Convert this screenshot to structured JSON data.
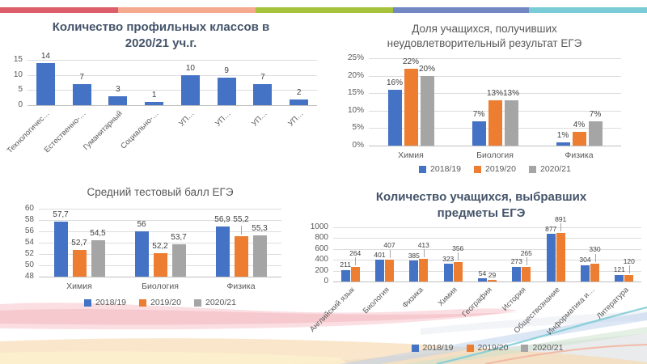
{
  "slide": {
    "background": "#FFFFFF",
    "stripe_colors": [
      "#DB5E6A",
      "#F4AA8E",
      "#A6C23C",
      "#7188C3",
      "#79CCD5"
    ],
    "palette": {
      "year_2018_19": "#4472C4",
      "year_2019_20": "#ED7D31",
      "year_2020_21": "#A5A5A5"
    },
    "title_color_bold": "#44546A",
    "title_color_regular": "#595959"
  },
  "chart_data": [
    {
      "type": "bar",
      "position": "top-left",
      "title": "Количество профильных классов в\n2020/21 уч.г.",
      "title_style": "bold",
      "categories": [
        "Технологичес…",
        "Естественно-…",
        "Гуманитарный",
        "Социально-…",
        "УП…",
        "УП…",
        "УП…",
        "УП…"
      ],
      "values": [
        14,
        7,
        3,
        1,
        10,
        9,
        7,
        2
      ],
      "bar_color": "#4472C4",
      "ylim": [
        0,
        15
      ],
      "yticks": [
        0,
        5,
        10,
        15
      ],
      "grid": true,
      "rotated_category_labels": true,
      "legend_position": "none"
    },
    {
      "type": "bar",
      "position": "top-right",
      "title": "Доля учащихся, получивших\nнеудовлетворительный результат ЕГЭ",
      "title_style": "regular",
      "categories": [
        "Химия",
        "Биология",
        "Физика"
      ],
      "series": [
        {
          "name": "2018/19",
          "color": "#4472C4",
          "values": [
            16,
            7,
            1
          ]
        },
        {
          "name": "2019/20",
          "color": "#ED7D31",
          "values": [
            22,
            13,
            4
          ]
        },
        {
          "name": "2020/21",
          "color": "#A5A5A5",
          "values": [
            20,
            13,
            7
          ]
        }
      ],
      "value_suffix": "%",
      "ylim": [
        0,
        25
      ],
      "yticks": [
        0,
        5,
        10,
        15,
        20,
        25
      ],
      "ytick_suffix": "%",
      "grid": true,
      "legend_position": "bottom"
    },
    {
      "type": "bar",
      "position": "bottom-left",
      "title": "Средний тестовый балл ЕГЭ",
      "title_style": "regular",
      "categories": [
        "Химия",
        "Биология",
        "Физика"
      ],
      "series": [
        {
          "name": "2018/19",
          "color": "#4472C4",
          "values": [
            57.7,
            56,
            56.9
          ],
          "labels": [
            "57,7",
            "56",
            "56,9"
          ]
        },
        {
          "name": "2019/20",
          "color": "#ED7D31",
          "values": [
            52.7,
            52.2,
            55.2
          ],
          "labels": [
            "52,7",
            "52,2",
            "55,2"
          ],
          "raised": [
            false,
            false,
            true
          ]
        },
        {
          "name": "2020/21",
          "color": "#A5A5A5",
          "values": [
            54.5,
            53.7,
            55.3
          ],
          "labels": [
            "54,5",
            "53,7",
            "55,3"
          ]
        }
      ],
      "ylim": [
        48,
        60
      ],
      "yticks": [
        48,
        50,
        52,
        54,
        56,
        58,
        60
      ],
      "grid": true,
      "legend_position": "bottom"
    },
    {
      "type": "bar",
      "position": "bottom-right",
      "title": "Количество учащихся, выбравших\nпредметы ЕГЭ",
      "title_style": "bold",
      "categories": [
        "Английский язык",
        "Биология",
        "Физика",
        "Химия",
        "География",
        "История",
        "Обществознание",
        "Информатика и…",
        "Литература"
      ],
      "series": [
        {
          "name": "2018/19",
          "color": "#4472C4",
          "values": [
            211,
            401,
            385,
            323,
            54,
            273,
            877,
            304,
            121
          ]
        },
        {
          "name": "2019/20",
          "color": "#ED7D31",
          "values": [
            264,
            407,
            413,
            356,
            29,
            265,
            891,
            330,
            120
          ],
          "raised": [
            true,
            true,
            true,
            true,
            false,
            true,
            true,
            true,
            true
          ]
        },
        {
          "name": "2020/21",
          "color": "#A5A5A5",
          "values": []
        }
      ],
      "ylim": [
        0,
        1000
      ],
      "yticks": [
        0,
        200,
        400,
        600,
        800,
        1000
      ],
      "grid": true,
      "rotated_category_labels": true,
      "legend_position": "bottom"
    }
  ]
}
